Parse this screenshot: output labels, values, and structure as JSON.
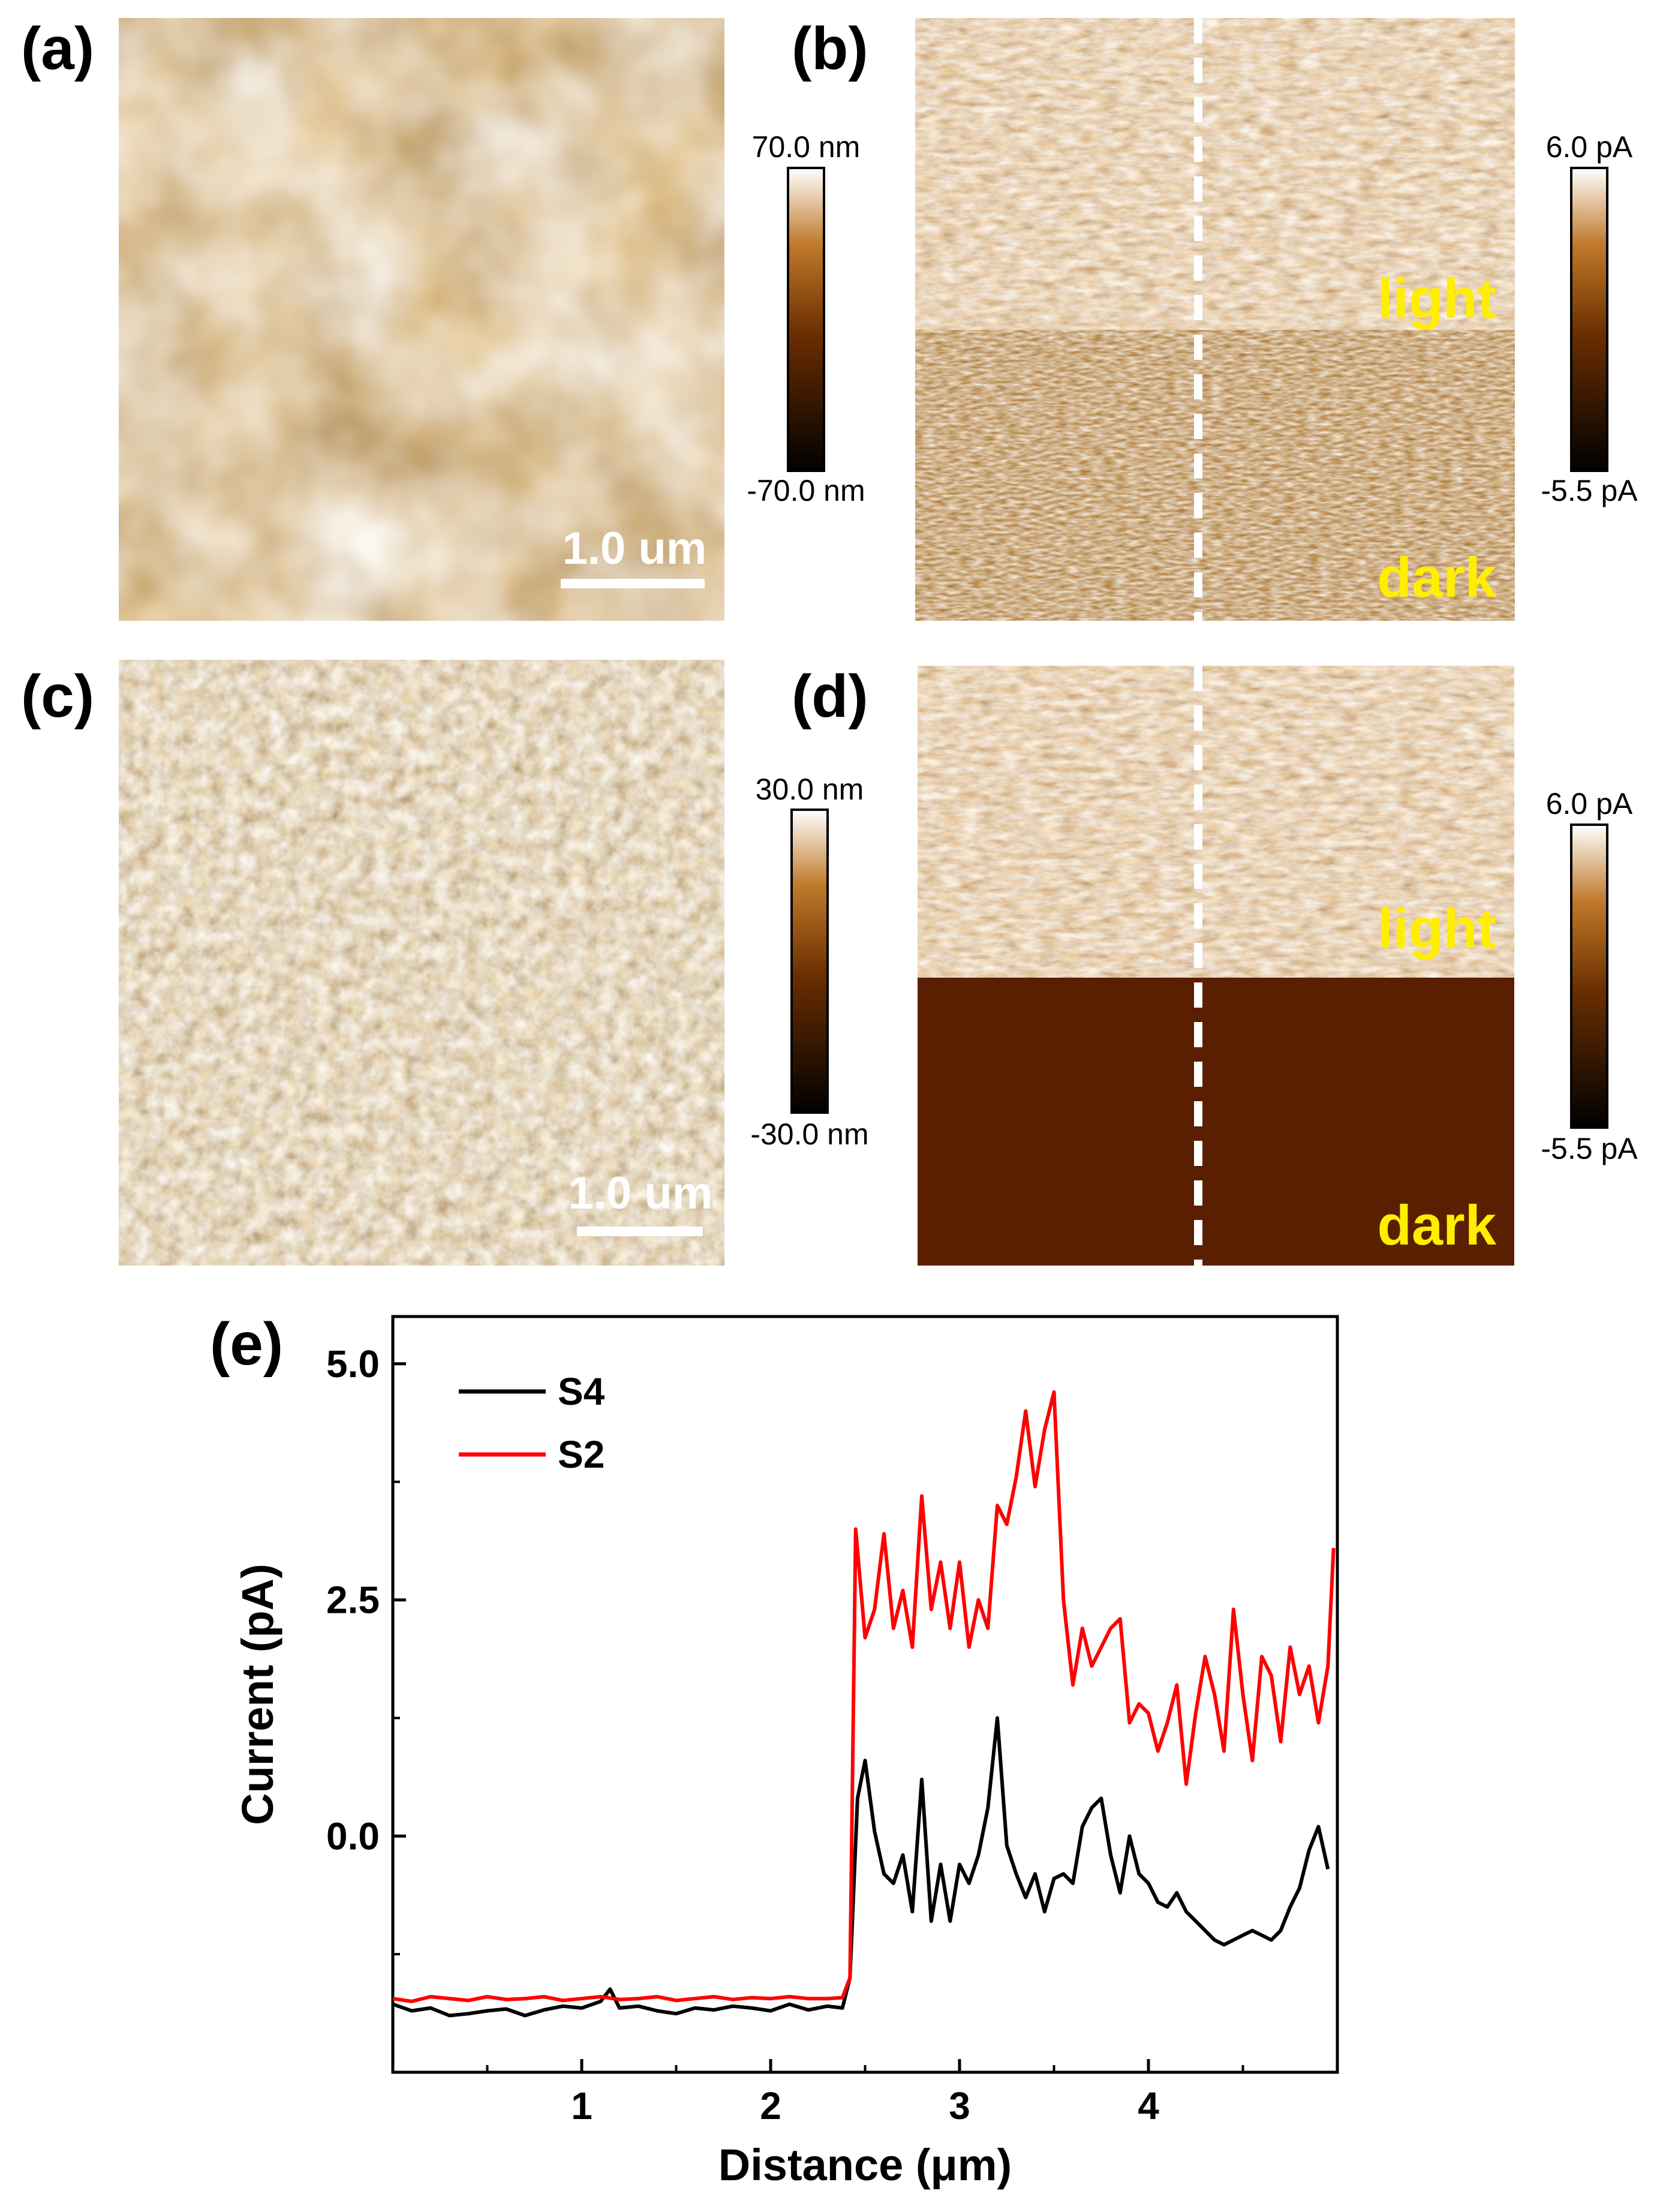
{
  "panels": {
    "a": {
      "letter": "(a)",
      "colorbar": {
        "max_label": "70.0 nm",
        "min_label": "-70.0 nm"
      },
      "scale_bar": "1.0 um"
    },
    "b": {
      "letter": "(b)",
      "colorbar": {
        "max_label": "6.0 pA",
        "min_label": "-5.5 pA"
      },
      "regions": {
        "light": "light",
        "dark": "dark"
      }
    },
    "c": {
      "letter": "(c)",
      "colorbar": {
        "max_label": "30.0 nm",
        "min_label": "-30.0 nm"
      },
      "scale_bar": "1.0 um"
    },
    "d": {
      "letter": "(d)",
      "colorbar": {
        "max_label": "6.0 pA",
        "min_label": "-5.5 pA"
      },
      "regions": {
        "light": "light",
        "dark": "dark"
      }
    },
    "e": {
      "letter": "(e)"
    }
  },
  "colors": {
    "afm_dark": "#000000",
    "afm_mid": "#8a4a00",
    "afm_light": "#ffffff",
    "label_yellow": "#ffee00",
    "s4": "#000000",
    "s2": "#ff0000"
  },
  "chart_data": {
    "type": "line",
    "title": "",
    "xlabel": "Distance (μm)",
    "ylabel": "Current (pA)",
    "xlim": [
      0,
      5
    ],
    "ylim": [
      -2.5,
      5.5
    ],
    "xticks": [
      1,
      2,
      3,
      4
    ],
    "yticks": [
      0.0,
      2.5,
      5.0
    ],
    "xtick_labels": [
      "1",
      "2",
      "3",
      "4"
    ],
    "ytick_labels": [
      "0.0",
      "2.5",
      "5.0"
    ],
    "legend_position": "top-left",
    "series": [
      {
        "name": "S4",
        "color": "#000000",
        "x": [
          0.0,
          0.1,
          0.2,
          0.3,
          0.4,
          0.5,
          0.6,
          0.7,
          0.8,
          0.9,
          1.0,
          1.1,
          1.15,
          1.2,
          1.3,
          1.4,
          1.5,
          1.6,
          1.7,
          1.8,
          1.9,
          2.0,
          2.1,
          2.2,
          2.3,
          2.38,
          2.42,
          2.46,
          2.5,
          2.55,
          2.6,
          2.65,
          2.7,
          2.75,
          2.8,
          2.85,
          2.9,
          2.95,
          3.0,
          3.05,
          3.1,
          3.15,
          3.2,
          3.25,
          3.3,
          3.35,
          3.4,
          3.45,
          3.5,
          3.55,
          3.6,
          3.65,
          3.7,
          3.75,
          3.8,
          3.85,
          3.9,
          3.95,
          4.0,
          4.05,
          4.1,
          4.15,
          4.2,
          4.25,
          4.3,
          4.35,
          4.4,
          4.45,
          4.5,
          4.55,
          4.6,
          4.65,
          4.7,
          4.75,
          4.8,
          4.85,
          4.9,
          4.95
        ],
        "y": [
          -1.78,
          -1.85,
          -1.82,
          -1.9,
          -1.88,
          -1.85,
          -1.83,
          -1.9,
          -1.84,
          -1.8,
          -1.82,
          -1.75,
          -1.62,
          -1.82,
          -1.8,
          -1.85,
          -1.88,
          -1.82,
          -1.84,
          -1.8,
          -1.82,
          -1.85,
          -1.78,
          -1.84,
          -1.8,
          -1.82,
          -1.5,
          0.4,
          0.8,
          0.05,
          -0.4,
          -0.5,
          -0.2,
          -0.8,
          0.6,
          -0.9,
          -0.3,
          -0.9,
          -0.3,
          -0.5,
          -0.2,
          0.3,
          1.25,
          -0.1,
          -0.4,
          -0.65,
          -0.4,
          -0.8,
          -0.45,
          -0.4,
          -0.5,
          0.1,
          0.3,
          0.4,
          -0.2,
          -0.6,
          0.0,
          -0.4,
          -0.5,
          -0.7,
          -0.75,
          -0.6,
          -0.8,
          -0.9,
          -1.0,
          -1.1,
          -1.15,
          -1.1,
          -1.05,
          -1.0,
          -1.05,
          -1.1,
          -1.0,
          -0.75,
          -0.55,
          -0.15,
          0.1,
          -0.35
        ]
      },
      {
        "name": "S2",
        "color": "#ff0000",
        "x": [
          0.0,
          0.1,
          0.2,
          0.3,
          0.4,
          0.5,
          0.6,
          0.7,
          0.8,
          0.9,
          1.0,
          1.1,
          1.2,
          1.3,
          1.4,
          1.5,
          1.6,
          1.7,
          1.8,
          1.9,
          2.0,
          2.1,
          2.2,
          2.3,
          2.38,
          2.42,
          2.45,
          2.5,
          2.55,
          2.6,
          2.65,
          2.7,
          2.75,
          2.8,
          2.85,
          2.9,
          2.95,
          3.0,
          3.05,
          3.1,
          3.15,
          3.2,
          3.25,
          3.3,
          3.35,
          3.4,
          3.45,
          3.5,
          3.55,
          3.6,
          3.65,
          3.7,
          3.75,
          3.8,
          3.85,
          3.9,
          3.95,
          4.0,
          4.05,
          4.1,
          4.15,
          4.2,
          4.25,
          4.3,
          4.35,
          4.4,
          4.45,
          4.5,
          4.55,
          4.6,
          4.65,
          4.7,
          4.75,
          4.8,
          4.85,
          4.9,
          4.95,
          4.98
        ],
        "y": [
          -1.72,
          -1.75,
          -1.7,
          -1.72,
          -1.74,
          -1.7,
          -1.73,
          -1.72,
          -1.7,
          -1.74,
          -1.72,
          -1.7,
          -1.73,
          -1.72,
          -1.7,
          -1.74,
          -1.72,
          -1.7,
          -1.73,
          -1.71,
          -1.72,
          -1.7,
          -1.72,
          -1.72,
          -1.71,
          -1.5,
          3.25,
          2.1,
          2.4,
          3.2,
          2.2,
          2.6,
          2.0,
          3.6,
          2.4,
          2.9,
          2.2,
          2.9,
          2.0,
          2.5,
          2.2,
          3.5,
          3.3,
          3.8,
          4.5,
          3.7,
          4.3,
          4.7,
          2.5,
          1.6,
          2.2,
          1.8,
          2.0,
          2.2,
          2.3,
          1.2,
          1.4,
          1.3,
          0.9,
          1.2,
          1.6,
          0.55,
          1.3,
          1.9,
          1.5,
          0.9,
          2.4,
          1.5,
          0.8,
          1.9,
          1.7,
          1.0,
          2.0,
          1.5,
          1.8,
          1.2,
          1.8,
          3.05
        ]
      }
    ]
  }
}
